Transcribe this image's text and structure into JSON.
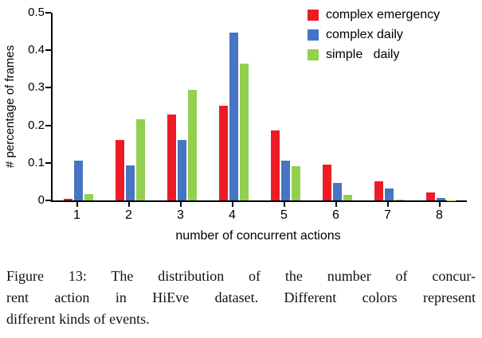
{
  "chart_data": {
    "type": "bar",
    "title": "",
    "xlabel": "number of concurrent actions",
    "ylabel": "# percentage of frames",
    "categories": [
      "1",
      "2",
      "3",
      "4",
      "5",
      "6",
      "7",
      "8"
    ],
    "series": [
      {
        "name": "complex emergency",
        "color": "#ed1c24",
        "values": [
          0.005,
          0.162,
          0.229,
          0.252,
          0.186,
          0.096,
          0.05,
          0.021
        ]
      },
      {
        "name": "complex daily",
        "color": "#4575c4",
        "values": [
          0.107,
          0.094,
          0.162,
          0.447,
          0.105,
          0.046,
          0.031,
          0.006
        ]
      },
      {
        "name": "simple   daily",
        "color": "#92d050",
        "values": [
          0.018,
          0.216,
          0.295,
          0.365,
          0.092,
          0.014,
          0.002,
          0.001
        ]
      }
    ],
    "ylim": [
      0,
      0.5
    ],
    "yticks": [
      "0",
      "0.1",
      "0.2",
      "0.3",
      "0.4",
      "0.5"
    ],
    "grid": false,
    "legend_position": "top-right"
  },
  "figure": {
    "caption_lines": [
      "Figure 13: The distribution of the number of concur-",
      "rent action in HiEve dataset. Different colors represent",
      "different kinds of events."
    ]
  }
}
